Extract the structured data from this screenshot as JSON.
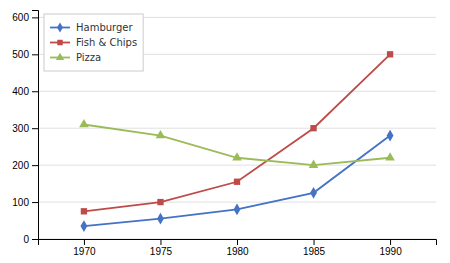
{
  "chart_data": {
    "type": "line",
    "x": [
      1970,
      1975,
      1980,
      1985,
      1990
    ],
    "series": [
      {
        "name": "Hamburger",
        "color": "#4472C4",
        "marker": "diamond",
        "values": [
          35,
          55,
          80,
          125,
          280
        ]
      },
      {
        "name": "Fish & Chips",
        "color": "#BE4B48",
        "marker": "square",
        "values": [
          75,
          100,
          155,
          300,
          500
        ]
      },
      {
        "name": "Pizza",
        "color": "#9BBB59",
        "marker": "triangle",
        "values": [
          310,
          280,
          220,
          200,
          220
        ]
      }
    ],
    "xlim": [
      1967,
      1993
    ],
    "xticks": [
      1970,
      1975,
      1980,
      1985,
      1990
    ],
    "ylim": [
      0,
      620
    ],
    "yticks": [
      0,
      100,
      200,
      300,
      400,
      500,
      600
    ],
    "grid": true,
    "legend": "upper left"
  }
}
